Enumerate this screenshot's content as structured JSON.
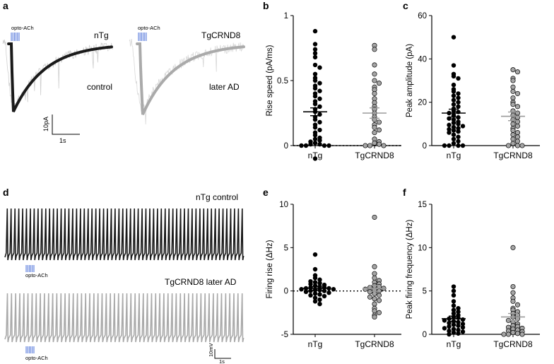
{
  "panel_labels": {
    "a": "a",
    "b": "b",
    "c": "c",
    "d": "d",
    "e": "e",
    "f": "f"
  },
  "panel_a": {
    "opto_label_left": "opto-ACh",
    "opto_label_right": "opto-ACh",
    "ntg_label": "nTg",
    "control_label": "control",
    "tg_label": "TgCRND8",
    "later_ad_label": "later AD",
    "scale_y_label": "10pA",
    "scale_x_label": "1s"
  },
  "panel_d": {
    "top_label": "nTg control",
    "bottom_label": "TgCRND8 later AD",
    "opto_label_top": "opto-ACh",
    "opto_label_bottom": "opto-ACh",
    "scale_y_label": "10mV",
    "scale_x_label": "1s"
  },
  "colors": {
    "ntg": "#000000",
    "tg": "#a6a6a6",
    "trace_black": "#1a1a1a",
    "trace_gray": "#aaaaaa",
    "noise": "#cfcfcf",
    "opto": "#4a6fd8"
  },
  "chart_data": [
    {
      "id": "b",
      "type": "scatter",
      "ylabel": "Rise speed (pA/ms)",
      "categories": [
        "nTg",
        "TgCRND8"
      ],
      "ylim": [
        0,
        1
      ],
      "yticks": [
        0,
        0.5,
        1
      ],
      "ytick_labels": [
        "0",
        "0.5",
        "1"
      ],
      "zero_line": true,
      "series": [
        {
          "name": "nTg",
          "mean": 0.26,
          "sem": 0.03,
          "values": [
            0.88,
            0.78,
            0.74,
            0.71,
            0.68,
            0.62,
            0.6,
            0.55,
            0.52,
            0.5,
            0.48,
            0.46,
            0.44,
            0.42,
            0.4,
            0.38,
            0.36,
            0.34,
            0.32,
            0.3,
            0.28,
            0.26,
            0.24,
            0.22,
            0.2,
            0.18,
            0.16,
            0.14,
            0.12,
            0.1,
            0.08,
            0.06,
            0.05,
            0.04,
            0.03,
            0.02,
            0.01,
            0.01,
            0,
            0,
            0,
            0,
            -0.1
          ]
        },
        {
          "name": "TgCRND8",
          "mean": 0.25,
          "sem": 0.04,
          "values": [
            0.77,
            0.74,
            0.62,
            0.55,
            0.5,
            0.48,
            0.45,
            0.43,
            0.4,
            0.36,
            0.33,
            0.3,
            0.28,
            0.25,
            0.22,
            0.2,
            0.18,
            0.16,
            0.14,
            0.12,
            0.1,
            0.05,
            0.03,
            0.02,
            0.01,
            0,
            0,
            0
          ]
        }
      ]
    },
    {
      "id": "c",
      "type": "scatter",
      "ylabel": "Peak amplitude (pA)",
      "categories": [
        "nTg",
        "TgCRND8"
      ],
      "ylim": [
        0,
        60
      ],
      "yticks": [
        0,
        20,
        40,
        60
      ],
      "ytick_labels": [
        "0",
        "20",
        "40",
        "60"
      ],
      "zero_line": false,
      "series": [
        {
          "name": "nTg",
          "mean": 15,
          "sem": 1.8,
          "values": [
            50,
            37,
            33,
            32,
            31,
            28,
            26,
            25,
            24,
            23,
            22,
            21,
            20,
            19,
            18,
            17,
            16,
            15.5,
            15,
            14,
            13,
            12.5,
            12,
            11,
            10.5,
            10,
            9.5,
            9,
            8.5,
            8,
            7.5,
            7,
            6.5,
            6,
            5,
            4,
            3,
            2,
            1,
            0,
            0,
            0,
            0
          ]
        },
        {
          "name": "TgCRND8",
          "mean": 13.5,
          "sem": 2,
          "values": [
            35,
            34,
            31,
            30,
            27,
            25,
            24,
            22,
            20,
            19,
            18,
            16,
            15,
            14,
            13,
            12,
            11,
            10,
            9,
            8,
            7,
            6,
            5,
            4,
            3,
            2,
            1,
            0,
            0,
            0
          ]
        }
      ]
    },
    {
      "id": "e",
      "type": "scatter",
      "ylabel": "Firing rise (ΔHz)",
      "categories": [
        "nTg",
        "TgCRND8"
      ],
      "ylim": [
        -5,
        10
      ],
      "yticks": [
        -5,
        0,
        5,
        10
      ],
      "ytick_labels": [
        "-5",
        "0",
        "5",
        "10"
      ],
      "zero_line": true,
      "series": [
        {
          "name": "nTg",
          "mean": 0.3,
          "sem": 0.2,
          "values": [
            4.2,
            2.5,
            1.8,
            1.5,
            1.3,
            1.1,
            1,
            0.9,
            0.8,
            0.7,
            0.6,
            0.5,
            0.4,
            0.4,
            0.3,
            0.3,
            0.2,
            0.2,
            0.1,
            0.1,
            0,
            0,
            -0.1,
            -0.2,
            -0.3,
            -0.4,
            -0.5,
            -0.6,
            -0.8,
            -1,
            -1.2,
            -1.5
          ]
        },
        {
          "name": "TgCRND8",
          "mean": 0.3,
          "sem": 0.35,
          "values": [
            8.5,
            2.8,
            2,
            1.5,
            1.2,
            1,
            0.8,
            0.6,
            0.5,
            0.4,
            0.3,
            0.2,
            0.1,
            0,
            -0.1,
            -0.3,
            -0.5,
            -0.7,
            -0.9,
            -1.1,
            -1.5,
            -2,
            -2.3,
            -2.5,
            -2.8,
            -3
          ]
        }
      ]
    },
    {
      "id": "f",
      "type": "scatter",
      "ylabel": "Peak firing frequency (ΔHz)",
      "categories": [
        "nTg",
        "TgCRND8"
      ],
      "ylim": [
        0,
        15
      ],
      "yticks": [
        0,
        5,
        10,
        15
      ],
      "ytick_labels": [
        "0",
        "5",
        "10",
        "15"
      ],
      "zero_line": false,
      "series": [
        {
          "name": "nTg",
          "mean": 1.8,
          "sem": 0.3,
          "values": [
            5.5,
            5,
            4.5,
            3.8,
            3.3,
            3,
            2.8,
            2.6,
            2.4,
            2.2,
            2,
            1.9,
            1.8,
            1.7,
            1.6,
            1.5,
            1.4,
            1.3,
            1.2,
            1.1,
            1,
            0.9,
            0.8,
            0.7,
            0.6,
            0.5,
            0.4,
            0.3,
            0.2,
            0.1,
            0
          ]
        },
        {
          "name": "TgCRND8",
          "mean": 2,
          "sem": 0.4,
          "values": [
            10,
            5.5,
            4.8,
            4.2,
            3.8,
            3.4,
            3,
            2.8,
            2.6,
            2.4,
            2.2,
            2,
            1.8,
            1.6,
            1.4,
            1.2,
            1,
            0.9,
            0.8,
            0.7,
            0.6,
            0.5,
            0.4,
            0.3,
            0.2,
            0.1,
            0,
            0,
            0
          ]
        }
      ]
    }
  ]
}
